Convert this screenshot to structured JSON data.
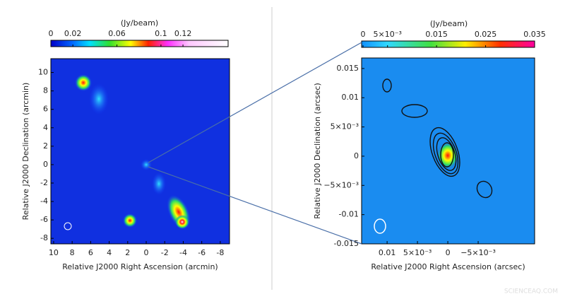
{
  "chart_data": [
    {
      "type": "heatmap",
      "colorbar_label": "(Jy/beam)",
      "colorbar_lim": [
        0,
        0.161
      ],
      "colorbar_ticks": [
        0,
        0.02,
        0.06,
        0.1,
        0.12
      ],
      "xlabel": "Relative J2000 Right Ascension (arcmin)",
      "ylabel": "Relative J2000 Declination (arcmin)",
      "xlim": [
        10.3,
        -9.0
      ],
      "xticks": [
        10,
        8,
        6,
        4,
        2,
        0,
        -2,
        -4,
        -6,
        -8
      ],
      "ylim": [
        -8.6,
        11.5
      ],
      "yticks": [
        -8,
        -6,
        -4,
        -2,
        0,
        2,
        4,
        6,
        8,
        10
      ]
    },
    {
      "type": "heatmap",
      "colorbar_label": "(Jy/beam)",
      "colorbar_lim": [
        0,
        0.035
      ],
      "colorbar_ticks": [
        0,
        {
          "value": 0.005,
          "label": "5×10⁻³"
        },
        0.015,
        0.025,
        0.035
      ],
      "xlabel": "Relative J2000 Right Ascension (arcsec)",
      "ylabel": "Relative J2000 Declination (arcsec)",
      "xlim": [
        0.0142,
        -0.0143
      ],
      "xticks": [
        0.01,
        {
          "value": 0.005,
          "label": "5×10⁻³"
        },
        0,
        {
          "value": -0.005,
          "label": "−5×10⁻³"
        }
      ],
      "ylim": [
        -0.015,
        0.0168
      ],
      "yticks": [
        -0.015,
        -0.01,
        {
          "value": -0.005,
          "label": "−5×10⁻³"
        },
        0,
        {
          "value": 0.005,
          "label": "5×10⁻³"
        },
        0.01,
        0.015
      ]
    }
  ],
  "watermark": "SCIENCEAQ.COM"
}
